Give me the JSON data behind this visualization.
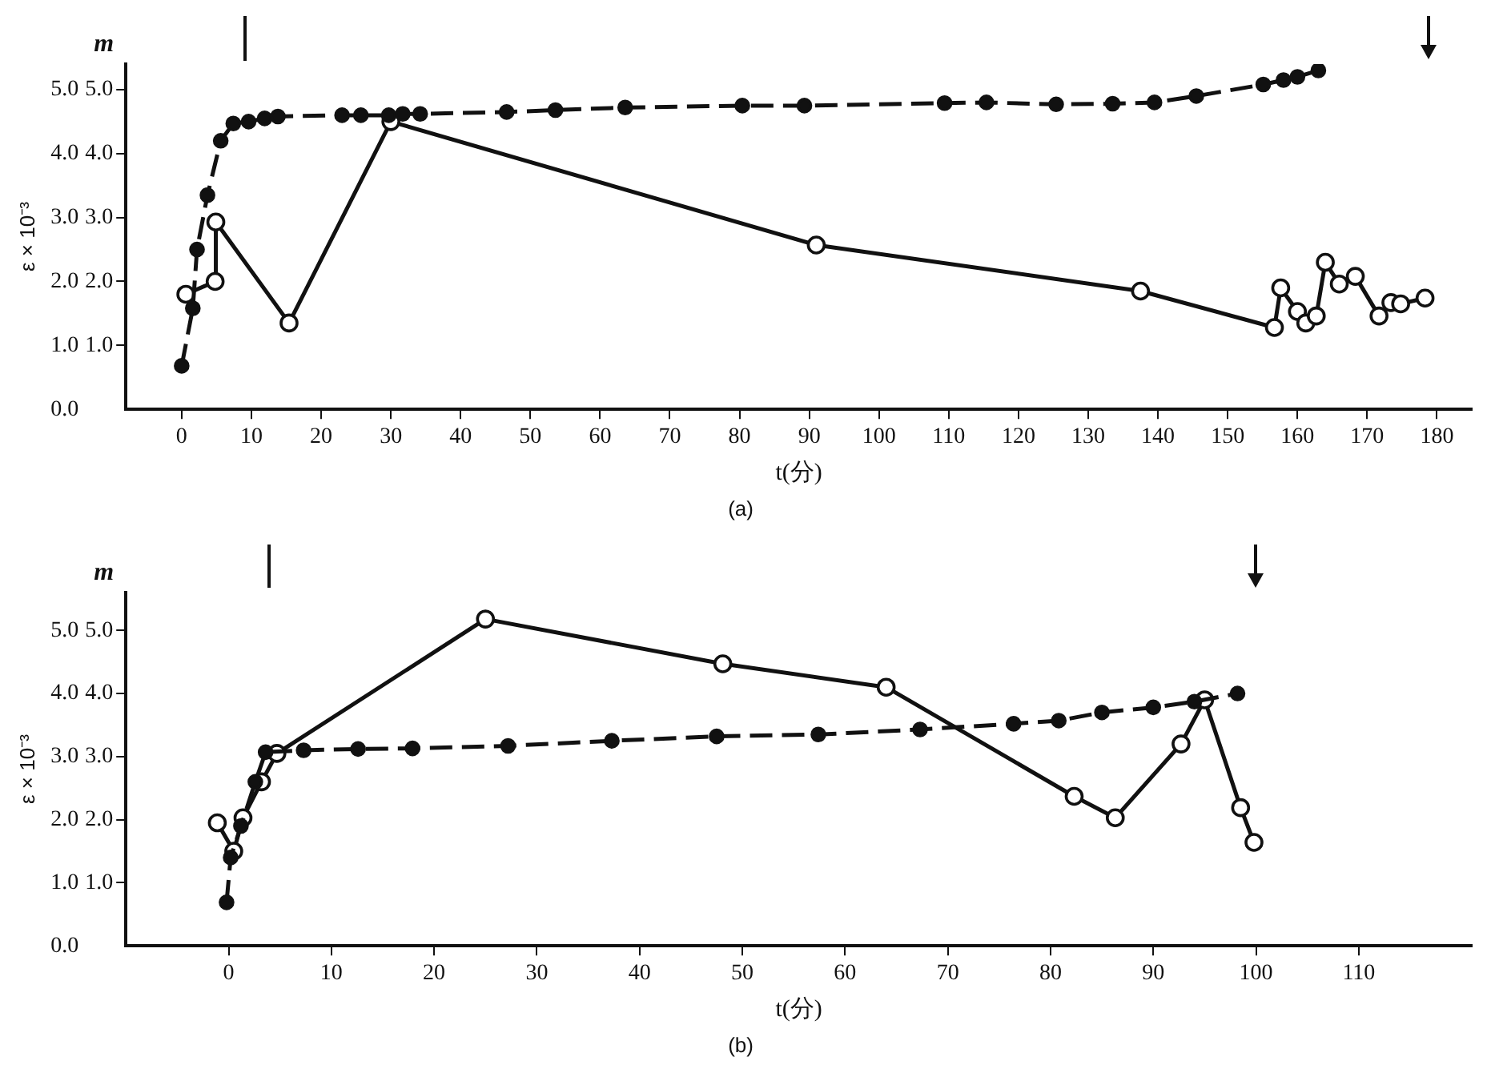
{
  "chart_data": [
    {
      "type": "line",
      "title": "(a)",
      "xlabel": "t(分)",
      "ylabel": "ε × 10⁻³",
      "y2label": "m",
      "xlim": [
        -8,
        185
      ],
      "xticks": [
        0,
        10,
        20,
        30,
        40,
        50,
        60,
        70,
        80,
        90,
        100,
        110,
        120,
        130,
        140,
        150,
        160,
        170,
        180
      ],
      "ylim": [
        0,
        5.4
      ],
      "yticks": [
        {
          "value": 0,
          "label": "0.0"
        },
        {
          "value": 1,
          "label": "1.0"
        },
        {
          "value": 2,
          "label": "2.0"
        },
        {
          "value": 3,
          "label": "3.0"
        },
        {
          "value": 4,
          "label": "4.0"
        },
        {
          "value": 5,
          "label": "5.0"
        }
      ],
      "y2lim": [
        0,
        5.4
      ],
      "y2ticks": [
        {
          "value": 1,
          "label": "1.0"
        },
        {
          "value": 2,
          "label": "2.0"
        },
        {
          "value": 3,
          "label": "3.0"
        },
        {
          "value": 4,
          "label": "4.0"
        },
        {
          "value": 5,
          "label": "5.0"
        }
      ],
      "grid": false,
      "legend": false,
      "series": [
        {
          "color": "#111111",
          "marker": "circle",
          "line_style": "dashed",
          "x": [
            0,
            1.6,
            2.2,
            3.7,
            5.6,
            7.4,
            9.6,
            11.9,
            13.8,
            23,
            25.7,
            29.7,
            31.7,
            34.2,
            46.6,
            53.6,
            63.6,
            80.4,
            89.3,
            109.4,
            115.4,
            125.4,
            133.5,
            139.5,
            145.5,
            155.1,
            158,
            160,
            163
          ],
          "values": [
            0.68,
            1.58,
            2.5,
            3.35,
            4.2,
            4.47,
            4.5,
            4.55,
            4.58,
            4.6,
            4.6,
            4.6,
            4.62,
            4.62,
            4.65,
            4.68,
            4.72,
            4.75,
            4.75,
            4.79,
            4.8,
            4.77,
            4.78,
            4.8,
            4.9,
            5.08,
            5.15,
            5.2,
            5.3
          ]
        },
        {
          "color": "#111111",
          "marker": "circle",
          "line_style": "solid",
          "x": [
            0.6,
            4.8,
            4.9,
            15.4,
            30,
            91,
            137.5,
            156.7,
            157.6,
            160,
            161.2,
            162.7,
            164,
            166,
            168.3,
            171.7,
            173.4,
            174.8,
            178.3
          ],
          "values": [
            1.8,
            2.0,
            2.93,
            1.35,
            4.5,
            2.57,
            1.85,
            1.28,
            1.9,
            1.53,
            1.35,
            1.46,
            2.3,
            1.96,
            2.08,
            1.46,
            1.67,
            1.65,
            1.74
          ]
        }
      ]
    },
    {
      "type": "line",
      "title": "(b)",
      "xlabel": "t(分)",
      "ylabel": "ε × 10⁻³",
      "y2label": "m",
      "xlim": [
        -10,
        121
      ],
      "xticks": [
        0,
        10,
        20,
        30,
        40,
        50,
        60,
        70,
        80,
        90,
        100,
        110
      ],
      "ylim": [
        0,
        5.6
      ],
      "yticks": [
        {
          "value": 0,
          "label": "0.0"
        },
        {
          "value": 1,
          "label": "1.0"
        },
        {
          "value": 2,
          "label": "2.0"
        },
        {
          "value": 3,
          "label": "3.0"
        },
        {
          "value": 4,
          "label": "4.0"
        },
        {
          "value": 5,
          "label": "5.0"
        }
      ],
      "y2lim": [
        0,
        5.6
      ],
      "y2ticks": [
        {
          "value": 1,
          "label": "1.0"
        },
        {
          "value": 2,
          "label": "2.0"
        },
        {
          "value": 3,
          "label": "3.0"
        },
        {
          "value": 4,
          "label": "4.0"
        },
        {
          "value": 5,
          "label": "5.0"
        }
      ],
      "grid": false,
      "legend": false,
      "series": [
        {
          "color": "#111111",
          "marker": "circle",
          "line_style": "dashed",
          "x": [
            -0.2,
            0.2,
            1.2,
            2.6,
            3.6,
            7.3,
            12.6,
            17.9,
            27.2,
            37.3,
            47.5,
            57.4,
            67.3,
            76.4,
            80.8,
            85,
            90,
            94,
            98.2
          ],
          "values": [
            0.69,
            1.4,
            1.9,
            2.6,
            3.07,
            3.1,
            3.12,
            3.13,
            3.17,
            3.25,
            3.32,
            3.35,
            3.43,
            3.52,
            3.57,
            3.7,
            3.78,
            3.87,
            4.0
          ]
        },
        {
          "color": "#111111",
          "marker": "circle",
          "line_style": "solid",
          "x": [
            -1.1,
            0.5,
            1.4,
            3.2,
            4.7,
            25,
            48.1,
            64,
            82.3,
            86.3,
            92.7,
            95,
            98.5,
            99.8
          ],
          "values": [
            1.95,
            1.5,
            2.03,
            2.6,
            3.05,
            5.18,
            4.47,
            4.1,
            2.37,
            2.03,
            3.2,
            3.9,
            2.19,
            1.64
          ]
        }
      ]
    }
  ]
}
